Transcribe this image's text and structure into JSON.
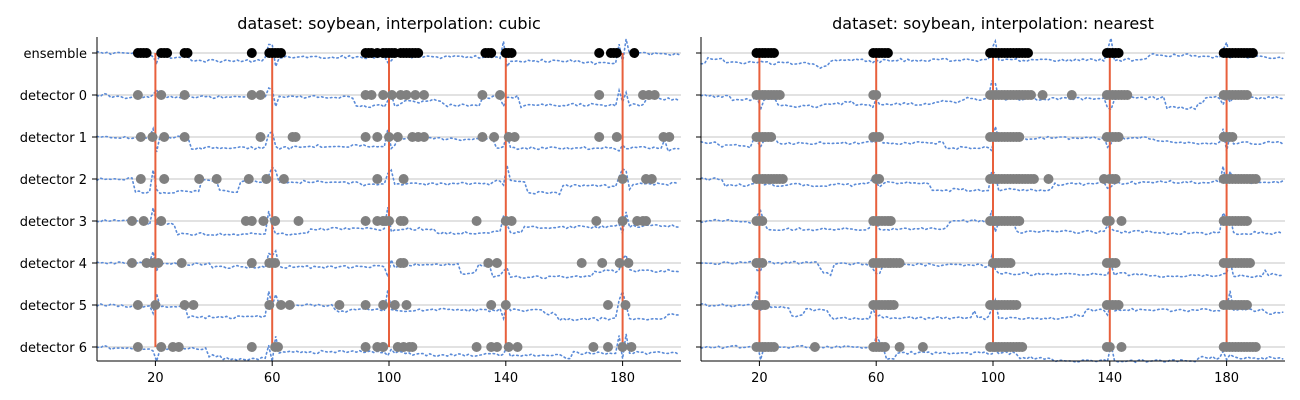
{
  "chart_data": [
    {
      "type": "scatter",
      "title": "dataset: soybean, interpolation: cubic",
      "categories": [
        "ensemble",
        "detector 0",
        "detector 1",
        "detector 2",
        "detector 3",
        "detector 4",
        "detector 5",
        "detector 6"
      ],
      "x_ticks": [
        20,
        60,
        100,
        140,
        180
      ],
      "xlim": [
        0,
        200
      ],
      "grid": "horizontal lines at each row",
      "change_points": [
        20,
        60,
        100,
        140,
        180
      ],
      "series": [
        {
          "category": "ensemble",
          "x": [
            14,
            15,
            16,
            17,
            22,
            23,
            24,
            30,
            31,
            53,
            59,
            60,
            61,
            62,
            63,
            92,
            93,
            94,
            96,
            98,
            99,
            100,
            101,
            102,
            104,
            105,
            106,
            107,
            108,
            109,
            110,
            133,
            134,
            135,
            140,
            141,
            142,
            172,
            176,
            177,
            178,
            184
          ]
        },
        {
          "category": "detector 0",
          "x": [
            14,
            22,
            30,
            53,
            56,
            92,
            94,
            98,
            101,
            104,
            106,
            109,
            112,
            132,
            138,
            172,
            187,
            189,
            191
          ]
        },
        {
          "category": "detector 1",
          "x": [
            15,
            19,
            23,
            30,
            56,
            67,
            68,
            92,
            96,
            100,
            103,
            108,
            110,
            112,
            132,
            136,
            141,
            143,
            172,
            178,
            194,
            196
          ]
        },
        {
          "category": "detector 2",
          "x": [
            15,
            23,
            35,
            41,
            52,
            58,
            64,
            96,
            105,
            180,
            188,
            190
          ]
        },
        {
          "category": "detector 3",
          "x": [
            12,
            16,
            22,
            51,
            53,
            57,
            61,
            69,
            92,
            96,
            98,
            99,
            100,
            104,
            105,
            130,
            140,
            142,
            171,
            180,
            185,
            187,
            188
          ]
        },
        {
          "category": "detector 4",
          "x": [
            12,
            17,
            19,
            21,
            29,
            53,
            59,
            60,
            61,
            104,
            105,
            134,
            137,
            166,
            173,
            179,
            182
          ]
        },
        {
          "category": "detector 5",
          "x": [
            14,
            20,
            30,
            33,
            59,
            63,
            66,
            83,
            92,
            98,
            102,
            106,
            135,
            140,
            175,
            181
          ]
        },
        {
          "category": "detector 6",
          "x": [
            14,
            22,
            26,
            28,
            53,
            61,
            62,
            92,
            96,
            98,
            103,
            105,
            107,
            108,
            130,
            135,
            137,
            141,
            144,
            170,
            175,
            180,
            183
          ]
        }
      ]
    },
    {
      "type": "scatter",
      "title": "dataset: soybean, interpolation: nearest",
      "categories": [
        "ensemble",
        "detector 0",
        "detector 1",
        "detector 2",
        "detector 3",
        "detector 4",
        "detector 5",
        "detector 6"
      ],
      "x_ticks": [
        20,
        60,
        100,
        140,
        180
      ],
      "xlim": [
        0,
        200
      ],
      "grid": "horizontal lines at each row",
      "change_points": [
        20,
        60,
        100,
        140,
        180
      ],
      "series": [
        {
          "category": "ensemble",
          "x": [
            19,
            20,
            21,
            22,
            23,
            24,
            25,
            59,
            60,
            61,
            62,
            63,
            64,
            99,
            100,
            101,
            102,
            103,
            104,
            105,
            106,
            107,
            108,
            109,
            110,
            111,
            112,
            139,
            140,
            141,
            142,
            143,
            179,
            180,
            181,
            182,
            183,
            184,
            185,
            186,
            187,
            188,
            189
          ]
        },
        {
          "category": "detector 0",
          "x": [
            19,
            20,
            21,
            22,
            23,
            24,
            25,
            26,
            27,
            59,
            60,
            99,
            100,
            101,
            102,
            103,
            104,
            105,
            106,
            107,
            108,
            109,
            110,
            111,
            112,
            113,
            117,
            127,
            139,
            140,
            141,
            142,
            143,
            144,
            145,
            146,
            179,
            180,
            181,
            182,
            183,
            184,
            185,
            186,
            187
          ]
        },
        {
          "category": "detector 1",
          "x": [
            19,
            20,
            21,
            22,
            23,
            24,
            59,
            60,
            61,
            99,
            100,
            101,
            102,
            103,
            104,
            105,
            106,
            107,
            108,
            109,
            139,
            140,
            141,
            142,
            143,
            179,
            180,
            181,
            182
          ]
        },
        {
          "category": "detector 2",
          "x": [
            19,
            20,
            21,
            22,
            23,
            24,
            25,
            26,
            27,
            28,
            60,
            61,
            99,
            100,
            101,
            102,
            103,
            104,
            105,
            106,
            107,
            108,
            109,
            110,
            111,
            112,
            113,
            114,
            119,
            138,
            140,
            141,
            142,
            179,
            180,
            181,
            182,
            183,
            184,
            185,
            186,
            187,
            188,
            189,
            190
          ]
        },
        {
          "category": "detector 3",
          "x": [
            19,
            20,
            21,
            59,
            60,
            61,
            62,
            63,
            64,
            65,
            99,
            100,
            101,
            102,
            103,
            104,
            105,
            106,
            107,
            108,
            109,
            139,
            140,
            144,
            179,
            180,
            181,
            182,
            183,
            184,
            185,
            186,
            187
          ]
        },
        {
          "category": "detector 4",
          "x": [
            19,
            20,
            21,
            59,
            60,
            61,
            62,
            63,
            64,
            65,
            66,
            67,
            68,
            100,
            101,
            102,
            103,
            104,
            105,
            106,
            139,
            140,
            141,
            142,
            179,
            180,
            181,
            182,
            183,
            184,
            185,
            186,
            187,
            188
          ]
        },
        {
          "category": "detector 5",
          "x": [
            19,
            20,
            21,
            22,
            59,
            60,
            61,
            62,
            63,
            64,
            65,
            66,
            99,
            100,
            101,
            102,
            103,
            104,
            105,
            106,
            107,
            108,
            139,
            140,
            141,
            142,
            143,
            179,
            180,
            181,
            182,
            183,
            184,
            185,
            186,
            187
          ]
        },
        {
          "category": "detector 6",
          "x": [
            19,
            20,
            21,
            22,
            23,
            24,
            25,
            39,
            59,
            60,
            61,
            62,
            63,
            68,
            76,
            99,
            100,
            101,
            102,
            103,
            104,
            105,
            106,
            107,
            108,
            109,
            110,
            139,
            140,
            144,
            179,
            180,
            181,
            182,
            183,
            184,
            185,
            186,
            187,
            188,
            189,
            190
          ]
        }
      ]
    }
  ]
}
